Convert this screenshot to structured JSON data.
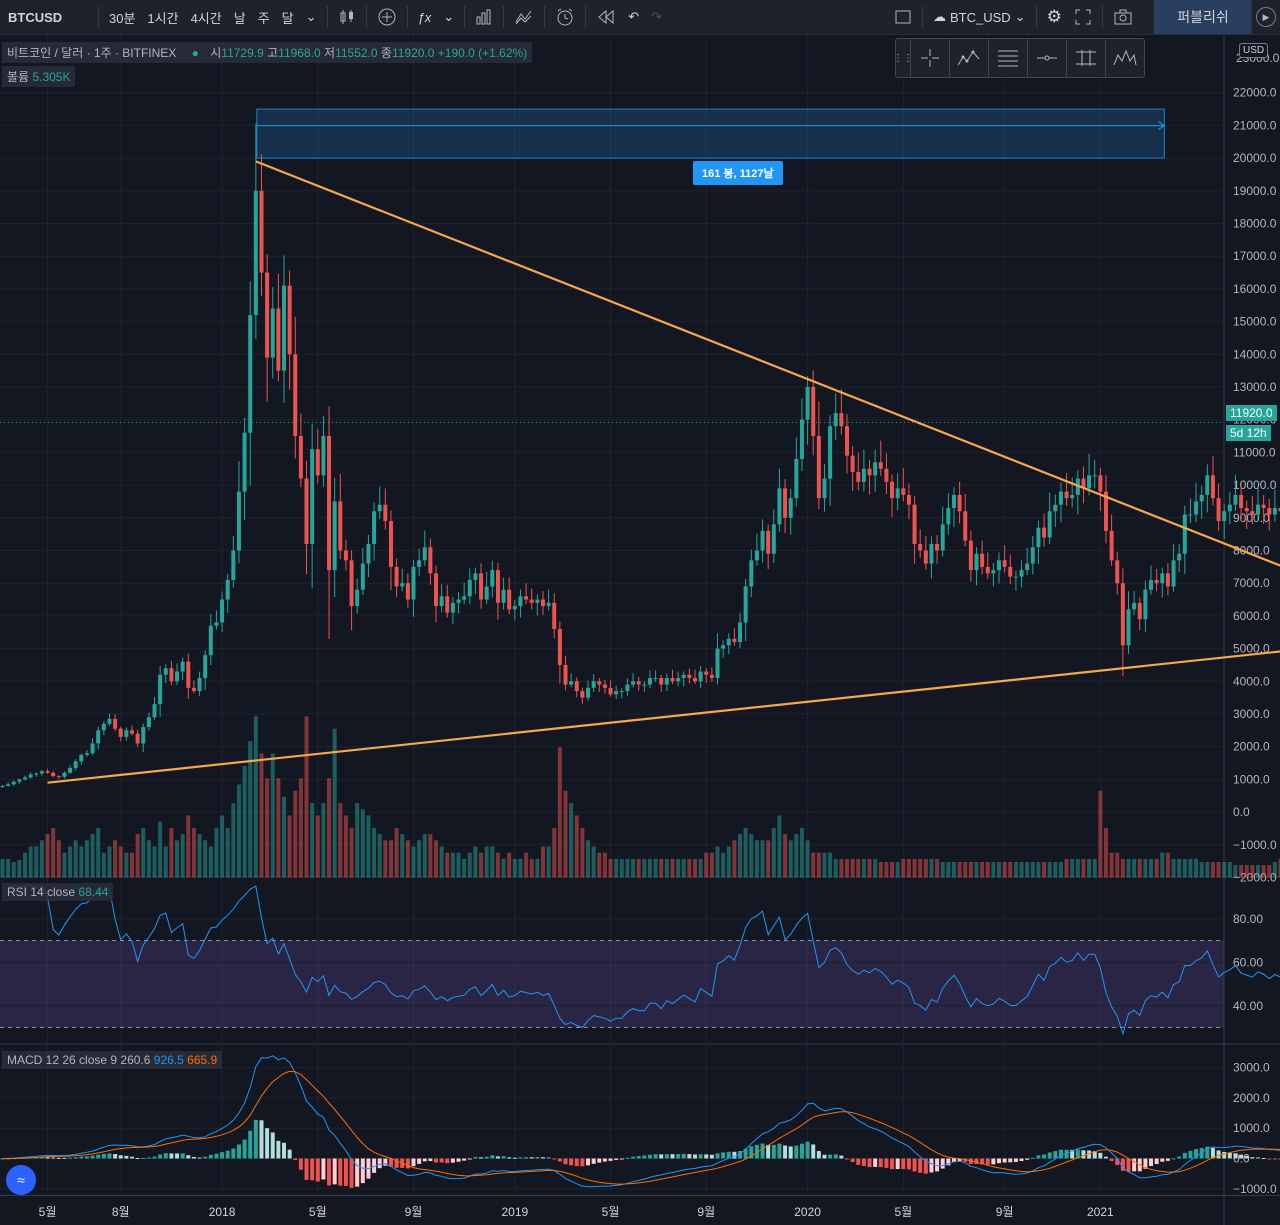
{
  "toolbar": {
    "symbol": "BTCUSD",
    "intervals": [
      "30분",
      "1시간",
      "4시간",
      "날",
      "주",
      "달"
    ],
    "compare_symbol": "BTC_USD",
    "publish_label": "퍼블리쉬"
  },
  "legend": {
    "title": "비트코인 / 달러 · 1주 · BITFINEX",
    "open_label": "시",
    "open": "11729.9",
    "high_label": "고",
    "high": "11968.0",
    "low_label": "저",
    "low": "11552.0",
    "close_label": "종",
    "close": "11920.0",
    "change": "+190.0 (+1.62%)",
    "volume_label": "볼륨",
    "volume": "5.305K"
  },
  "rsi_legend": {
    "label": "RSI 14 close",
    "value": "68.44"
  },
  "macd_legend": {
    "label": "MACD 12 26 close 9",
    "hist": "260.6",
    "macd": "926.5",
    "signal": "665.9"
  },
  "measure_label": "161 봉, 1127날",
  "currency_badge": "USD",
  "last_price": "11920.0",
  "countdown": "5d 12h",
  "price_axis": [
    "22000.0",
    "21000.0",
    "20000.0",
    "19000.0",
    "18000.0",
    "17000.0",
    "16000.0",
    "15000.0",
    "14000.0",
    "13000.0",
    "12000.0",
    "11000.0",
    "10000.0",
    "9000.0",
    "8000.0",
    "7000.0",
    "6000.0",
    "5000.0",
    "4000.0",
    "3000.0",
    "2000.0",
    "1000.0",
    "0.0",
    "−1000.0",
    "−2000.0"
  ],
  "price_axis_top": "23000.0",
  "rsi_axis": [
    "80.00",
    "60.00",
    "40.00"
  ],
  "macd_axis": [
    "3000.0",
    "2000.0",
    "1000.0",
    "0.0",
    "−1000.0"
  ],
  "time_axis": [
    {
      "label": "5월",
      "bar": 8
    },
    {
      "label": "8월",
      "bar": 21
    },
    {
      "label": "2018",
      "bar": 39
    },
    {
      "label": "5월",
      "bar": 56
    },
    {
      "label": "9월",
      "bar": 73
    },
    {
      "label": "2019",
      "bar": 91
    },
    {
      "label": "5월",
      "bar": 108
    },
    {
      "label": "9월",
      "bar": 125
    },
    {
      "label": "2020",
      "bar": 143
    },
    {
      "label": "5월",
      "bar": 160
    },
    {
      "label": "9월",
      "bar": 178
    },
    {
      "label": "2021",
      "bar": 195
    }
  ],
  "chart_data": {
    "type": "candlestick",
    "interval": "1W",
    "price_range": [
      -2000,
      23000
    ],
    "rsi_range": [
      20,
      95
    ],
    "rsi_levels": [
      70,
      30
    ],
    "macd_range": [
      -1300,
      3600
    ],
    "closes": [
      800,
      850,
      930,
      1000,
      1060,
      1150,
      1180,
      1250,
      1200,
      1100,
      1080,
      1200,
      1350,
      1550,
      1750,
      1800,
      2100,
      2500,
      2700,
      2850,
      2550,
      2300,
      2500,
      2400,
      2100,
      2600,
      2900,
      3300,
      4200,
      4400,
      4000,
      4300,
      4600,
      3800,
      3700,
      4100,
      4800,
      5700,
      5800,
      6500,
      7100,
      8000,
      9800,
      11600,
      15200,
      19000,
      16500,
      13900,
      15400,
      13500,
      16100,
      14000,
      11500,
      10200,
      8200,
      11100,
      10300,
      11500,
      7400,
      9500,
      8000,
      7700,
      6300,
      6800,
      7600,
      8200,
      9200,
      9400,
      8900,
      7500,
      6900,
      7000,
      6500,
      7500,
      7700,
      8100,
      7300,
      6300,
      6600,
      6100,
      6400,
      6500,
      6600,
      7100,
      7300,
      6500,
      6900,
      7400,
      6400,
      6800,
      6200,
      6300,
      6600,
      6500,
      6400,
      6500,
      6300,
      6400,
      5600,
      4500,
      3900,
      4000,
      3700,
      3500,
      3800,
      4000,
      3900,
      3800,
      3600,
      3700,
      3700,
      3900,
      4000,
      3900,
      3900,
      4100,
      4100,
      3900,
      4100,
      4000,
      4100,
      4200,
      4100,
      4000,
      4300,
      4200,
      4100,
      5000,
      5100,
      5300,
      5200,
      5800,
      6900,
      7700,
      8000,
      8600,
      7900,
      8800,
      9900,
      9000,
      9600,
      10800,
      12000,
      13000,
      11500,
      9600,
      10200,
      11800,
      12200,
      11800,
      10900,
      10400,
      10100,
      10500,
      10300,
      10700,
      10500,
      10100,
      9600,
      9900,
      9700,
      9400,
      8200,
      8000,
      7600,
      8200,
      8000,
      8800,
      9300,
      9700,
      9200,
      8300,
      7400,
      7900,
      7500,
      7300,
      7400,
      7700,
      7500,
      7200,
      7200,
      7400,
      7600,
      8100,
      8700,
      8400,
      9200,
      9400,
      9800,
      9600,
      9700,
      10200,
      9900,
      10300,
      10300,
      9800,
      8600,
      7700,
      7000,
      5100,
      6200,
      6400,
      5900,
      6800,
      7100,
      7000,
      7300,
      6900,
      7700,
      7900,
      9100,
      9100,
      9500,
      9700,
      10300,
      9600,
      8900,
      9200,
      9400,
      9700,
      9300,
      9200,
      9100,
      9400,
      9300,
      9100,
      9300,
      9200,
      9500,
      9700,
      11300,
      11700,
      11900,
      11700,
      11550,
      11730,
      11920
    ],
    "volume": [
      0.3,
      0.3,
      0.25,
      0.28,
      0.4,
      0.5,
      0.5,
      0.6,
      0.7,
      0.8,
      0.6,
      0.4,
      0.5,
      0.6,
      0.5,
      0.6,
      0.7,
      0.8,
      0.4,
      0.5,
      0.6,
      0.5,
      0.4,
      0.4,
      0.7,
      0.8,
      0.6,
      0.5,
      0.9,
      0.5,
      0.8,
      0.6,
      0.7,
      1.0,
      0.8,
      0.7,
      0.6,
      0.5,
      0.8,
      1.0,
      0.8,
      1.2,
      1.5,
      1.8,
      2.2,
      2.6,
      2.0,
      1.6,
      2.0,
      1.6,
      1.3,
      1.0,
      1.4,
      1.6,
      2.6,
      1.2,
      1.0,
      1.2,
      1.6,
      2.4,
      1.2,
      1.0,
      0.8,
      1.2,
      1.1,
      1.0,
      0.8,
      0.7,
      0.6,
      0.6,
      0.8,
      0.7,
      0.6,
      0.5,
      0.6,
      0.7,
      0.7,
      0.6,
      0.5,
      0.4,
      0.4,
      0.4,
      0.3,
      0.4,
      0.5,
      0.4,
      0.5,
      0.5,
      0.4,
      0.3,
      0.4,
      0.3,
      0.3,
      0.4,
      0.3,
      0.3,
      0.5,
      0.5,
      0.8,
      2.1,
      1.4,
      1.2,
      1.0,
      0.8,
      0.6,
      0.5,
      0.4,
      0.4,
      0.3,
      0.3,
      0.3,
      0.3,
      0.3,
      0.3,
      0.3,
      0.3,
      0.3,
      0.3,
      0.3,
      0.3,
      0.3,
      0.3,
      0.3,
      0.3,
      0.3,
      0.4,
      0.4,
      0.5,
      0.4,
      0.5,
      0.6,
      0.7,
      0.8,
      0.7,
      0.6,
      0.6,
      0.6,
      0.8,
      1.0,
      0.7,
      0.6,
      0.7,
      0.8,
      0.6,
      0.4,
      0.4,
      0.4,
      0.4,
      0.3,
      0.3,
      0.3,
      0.3,
      0.3,
      0.3,
      0.3,
      0.3,
      0.25,
      0.25,
      0.25,
      0.25,
      0.3,
      0.3,
      0.3,
      0.3,
      0.3,
      0.3,
      0.3,
      0.25,
      0.25,
      0.25,
      0.25,
      0.25,
      0.25,
      0.25,
      0.25,
      0.25,
      0.25,
      0.25,
      0.25,
      0.25,
      0.25,
      0.25,
      0.25,
      0.25,
      0.25,
      0.25,
      0.25,
      0.25,
      0.25,
      0.3,
      0.3,
      0.3,
      0.3,
      0.3,
      0.3,
      1.4,
      0.8,
      0.4,
      0.4,
      0.3,
      0.3,
      0.3,
      0.3,
      0.3,
      0.3,
      0.3,
      0.4,
      0.4,
      0.3,
      0.3,
      0.3,
      0.3,
      0.3,
      0.25,
      0.25,
      0.25,
      0.25,
      0.25,
      0.25,
      0.2,
      0.2,
      0.2,
      0.2,
      0.2,
      0.2,
      0.2,
      0.25,
      0.3,
      0.4,
      0.3,
      0.25,
      0.2,
      0.15,
      0.1
    ],
    "trendlines": [
      {
        "name": "upper",
        "from": {
          "bar": 45,
          "price": 19900
        },
        "to": {
          "bar": 229,
          "price": 7400
        }
      },
      {
        "name": "lower",
        "from": {
          "bar": 8,
          "price": 900
        },
        "to": {
          "bar": 229,
          "price": 4950
        }
      }
    ],
    "measure": {
      "from_bar": 45,
      "to_bar": 206,
      "price_low": 20000,
      "price_high": 21500
    }
  }
}
